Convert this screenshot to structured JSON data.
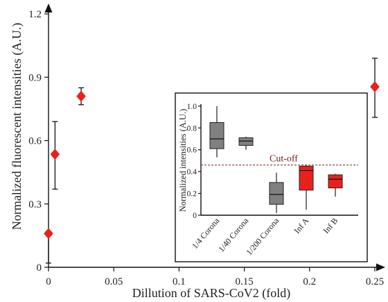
{
  "chart_data": [
    {
      "type": "scatter",
      "xlabel": "Dillution of SARS-CoV2 (fold)",
      "ylabel": "Normalized fluorescent intensities (A.U.)",
      "xlim": [
        0,
        0.25
      ],
      "ylim": [
        0,
        1.2
      ],
      "xticks": [
        0,
        0.05,
        0.1,
        0.15,
        0.2,
        0.25
      ],
      "xtick_labels": [
        "0",
        "0.05",
        "0.1",
        "0.15",
        "0.2",
        "0.25"
      ],
      "yticks": [
        0,
        0.3,
        0.6,
        0.9,
        1.2
      ],
      "ytick_labels": [
        "0",
        "0.3",
        "0.6",
        "0.9",
        "1.2"
      ],
      "marker": "diamond",
      "marker_color": "#e8211d",
      "points": [
        {
          "x": 0.0,
          "y": 0.16,
          "err_low": 0.02,
          "err_high": 0.16
        },
        {
          "x": 0.005,
          "y": 0.535,
          "err_low": 0.37,
          "err_high": 0.69
        },
        {
          "x": 0.025,
          "y": 0.81,
          "err_low": 0.77,
          "err_high": 0.85
        },
        {
          "x": 0.25,
          "y": 0.855,
          "err_low": 0.71,
          "err_high": 0.99
        }
      ]
    },
    {
      "type": "box",
      "ylabel": "Normalized intensities (A.U.)",
      "ylim": [
        0,
        1.05
      ],
      "yticks": [
        0,
        0.2,
        0.4,
        0.6,
        0.8,
        1.0
      ],
      "ytick_labels": [
        "0",
        "0.2",
        "0.4",
        "0.6",
        "0.8",
        "1.0"
      ],
      "cutoff": {
        "label": "Cut-off",
        "value": 0.46,
        "color": "#7a1f1f"
      },
      "categories": [
        "1/4 Corona",
        "1/40 Corona",
        "1/200 Corona",
        "Inf A",
        "Inf B"
      ],
      "boxes": [
        {
          "min": 0.53,
          "q1": 0.61,
          "median": 0.7,
          "q3": 0.85,
          "max": 1.0,
          "color": "#808080"
        },
        {
          "min": 0.6,
          "q1": 0.64,
          "median": 0.68,
          "q3": 0.71,
          "max": 0.72,
          "color": "#808080"
        },
        {
          "min": 0.02,
          "q1": 0.1,
          "median": 0.19,
          "q3": 0.3,
          "max": 0.39,
          "color": "#808080"
        },
        {
          "min": 0.05,
          "q1": 0.23,
          "median": 0.41,
          "q3": 0.45,
          "max": 0.46,
          "color": "#e8211d"
        },
        {
          "min": 0.17,
          "q1": 0.25,
          "median": 0.33,
          "q3": 0.37,
          "max": 0.38,
          "color": "#e8211d"
        }
      ]
    }
  ]
}
